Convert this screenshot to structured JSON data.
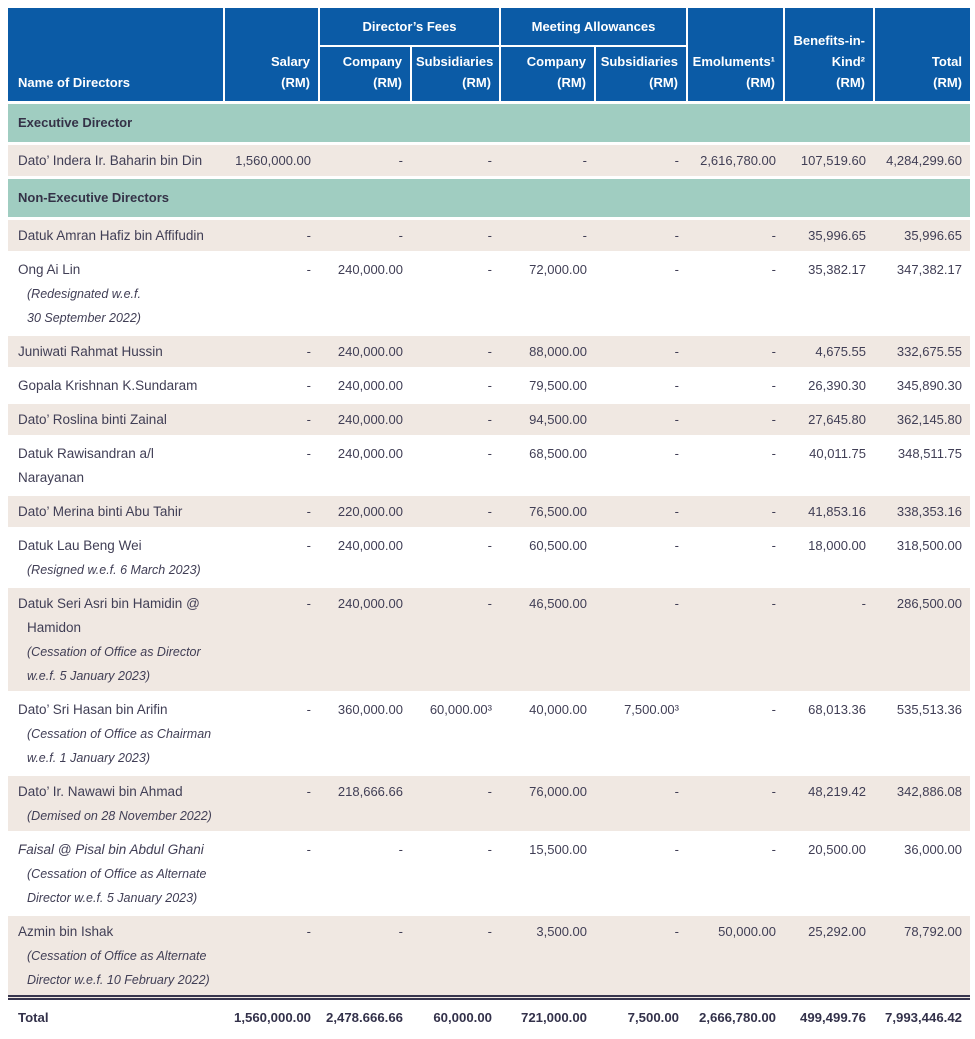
{
  "colors": {
    "header_blue": "#0B5BA6",
    "section_teal": "#A0CDC1",
    "row_beige": "#F0E8E2",
    "text_dark": "#403E55",
    "total_rule": "#37354E"
  },
  "table": {
    "header": {
      "name": "Name of Directors",
      "salary": [
        "Salary",
        "(RM)"
      ],
      "directors_fees": "Director’s Fees",
      "meeting_allowances": "Meeting Allowances",
      "fees_company": [
        "Company",
        "(RM)"
      ],
      "fees_subsidiaries": [
        "Subsidiaries",
        "(RM)"
      ],
      "allowances_company": [
        "Company",
        "(RM)"
      ],
      "allowances_subsidiaries": [
        "Subsidiaries",
        "(RM)"
      ],
      "emoluments": [
        "Emoluments¹",
        "(RM)"
      ],
      "benefits": [
        "Benefits-in-",
        "Kind²",
        "(RM)"
      ],
      "total": [
        "Total",
        "(RM)"
      ]
    },
    "sections": [
      {
        "title": "Executive Director",
        "rows": [
          {
            "name_lines": [
              "Dato’ Indera Ir. Baharin bin Din"
            ],
            "values": [
              "1,560,000.00",
              "-",
              "-",
              "-",
              "-",
              "2,616,780.00",
              "107,519.60",
              "4,284,299.60"
            ]
          }
        ]
      },
      {
        "title": "Non-Executive Directors",
        "rows": [
          {
            "name_lines": [
              "Datuk Amran Hafiz bin Affifudin"
            ],
            "values": [
              "-",
              "-",
              "-",
              "-",
              "-",
              "-",
              "35,996.65",
              "35,996.65"
            ]
          },
          {
            "name_lines": [
              "Ong Ai Lin"
            ],
            "note_lines": [
              "(Redesignated w.e.f.",
              "30 September 2022)"
            ],
            "values": [
              "-",
              "240,000.00",
              "-",
              "72,000.00",
              "-",
              "-",
              "35,382.17",
              "347,382.17"
            ]
          },
          {
            "name_lines": [
              "Juniwati Rahmat Hussin"
            ],
            "values": [
              "-",
              "240,000.00",
              "-",
              "88,000.00",
              "-",
              "-",
              "4,675.55",
              "332,675.55"
            ]
          },
          {
            "name_lines": [
              "Gopala Krishnan K.Sundaram"
            ],
            "values": [
              "-",
              "240,000.00",
              "-",
              "79,500.00",
              "-",
              "-",
              "26,390.30",
              "345,890.30"
            ]
          },
          {
            "name_lines": [
              "Dato’ Roslina binti Zainal"
            ],
            "values": [
              "-",
              "240,000.00",
              "-",
              "94,500.00",
              "-",
              "-",
              "27,645.80",
              "362,145.80"
            ]
          },
          {
            "name_lines": [
              "Datuk Rawisandran a/l Narayanan"
            ],
            "values": [
              "-",
              "240,000.00",
              "-",
              "68,500.00",
              "-",
              "-",
              "40,011.75",
              "348,511.75"
            ]
          },
          {
            "name_lines": [
              "Dato’ Merina binti Abu Tahir"
            ],
            "values": [
              "-",
              "220,000.00",
              "-",
              "76,500.00",
              "-",
              "-",
              "41,853.16",
              "338,353.16"
            ]
          },
          {
            "name_lines": [
              "Datuk Lau Beng Wei"
            ],
            "note_lines": [
              "(Resigned w.e.f. 6 March 2023)"
            ],
            "values": [
              "-",
              "240,000.00",
              "-",
              "60,500.00",
              "-",
              "-",
              "18,000.00",
              "318,500.00"
            ]
          },
          {
            "name_lines": [
              "Datuk Seri Asri bin Hamidin @",
              "Hamidon"
            ],
            "note_lines": [
              "(Cessation of Office as Director",
              "w.e.f. 5 January 2023)"
            ],
            "values": [
              "-",
              "240,000.00",
              "-",
              "46,500.00",
              "-",
              "-",
              "-",
              "286,500.00"
            ]
          },
          {
            "name_lines": [
              "Dato’ Sri Hasan bin Arifin"
            ],
            "note_lines": [
              "(Cessation of Office as Chairman",
              "w.e.f. 1 January 2023)"
            ],
            "values": [
              "-",
              "360,000.00",
              "60,000.00³",
              "40,000.00",
              "7,500.00³",
              "-",
              "68,013.36",
              "535,513.36"
            ]
          },
          {
            "name_lines": [
              "Dato’ Ir. Nawawi bin Ahmad"
            ],
            "note_lines": [
              "(Demised on 28 November 2022)"
            ],
            "values": [
              "-",
              "218,666.66",
              "-",
              "76,000.00",
              "-",
              "-",
              "48,219.42",
              "342,886.08"
            ]
          },
          {
            "name_lines": [
              "Faisal @ Pisal bin Abdul Ghani"
            ],
            "italic": true,
            "note_lines": [
              "(Cessation of Office as Alternate",
              "Director w.e.f. 5 January 2023)"
            ],
            "values": [
              "-",
              "-",
              "-",
              "15,500.00",
              "-",
              "-",
              "20,500.00",
              "36,000.00"
            ]
          },
          {
            "name_lines": [
              "Azmin bin Ishak"
            ],
            "note_lines": [
              "(Cessation of Office as Alternate",
              "Director w.e.f. 10 February 2022)"
            ],
            "values": [
              "-",
              "-",
              "-",
              "3,500.00",
              "-",
              "50,000.00",
              "25,292.00",
              "78,792.00"
            ]
          }
        ]
      }
    ],
    "total_row": {
      "label": "Total",
      "values": [
        "1,560,000.00",
        "2,478.666.66",
        "60,000.00",
        "721,000.00",
        "7,500.00",
        "2,666,780.00",
        "499,499.76",
        "7,993,446.42"
      ]
    }
  }
}
